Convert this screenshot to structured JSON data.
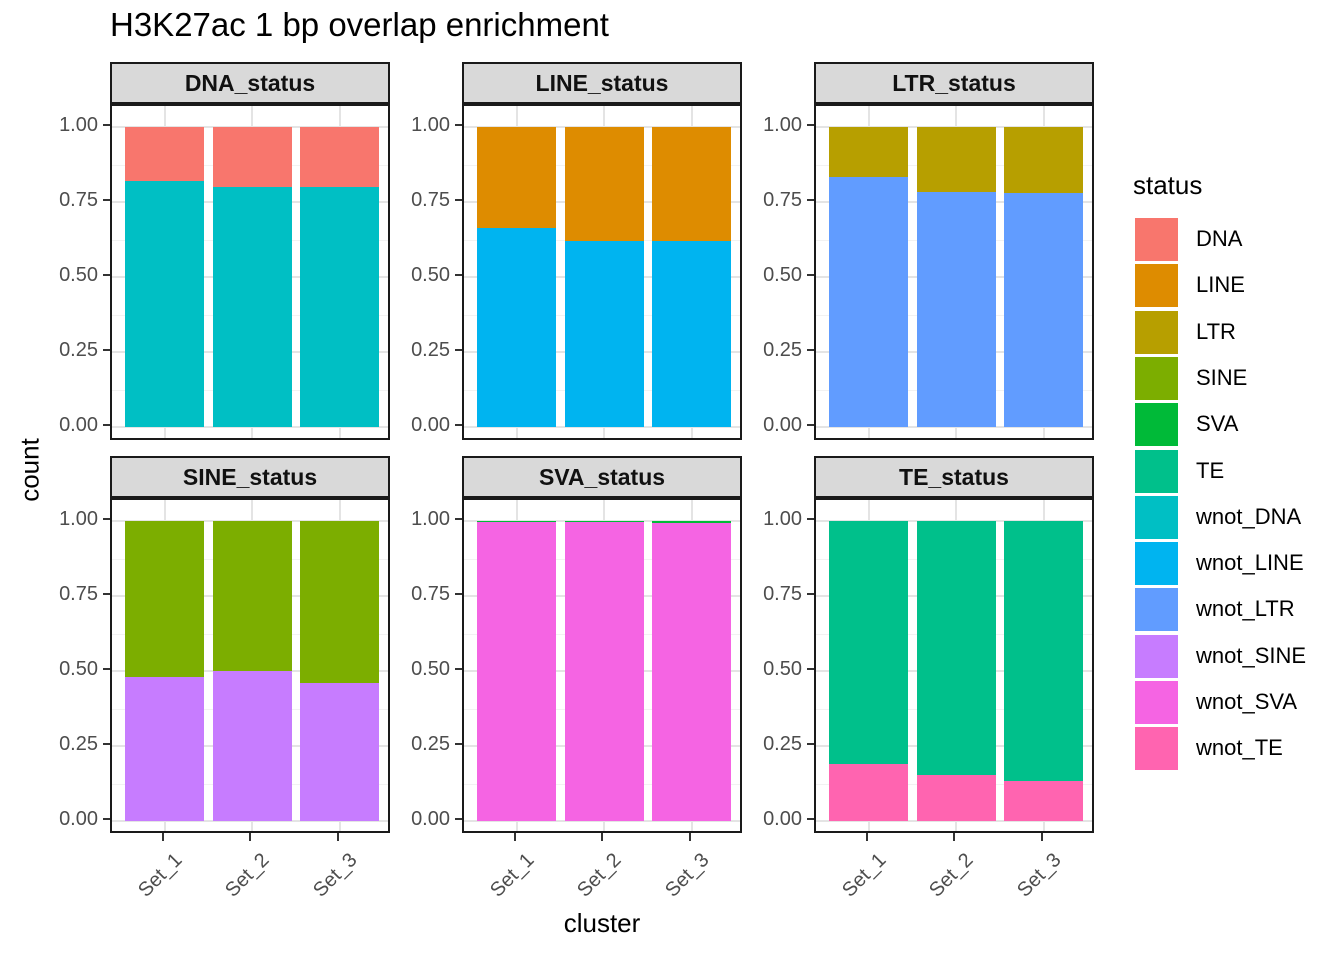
{
  "title": "H3K27ac 1 bp overlap enrichment",
  "x_axis_title": "cluster",
  "y_axis_title": "count",
  "y_tick_labels": [
    "1.00",
    "0.75",
    "0.50",
    "0.25",
    "0.00"
  ],
  "x_tick_labels": [
    "Set_1",
    "Set_2",
    "Set_3"
  ],
  "legend": {
    "title": "status",
    "items": [
      {
        "label": "DNA",
        "color": "#F8766D"
      },
      {
        "label": "LINE",
        "color": "#DE8C00"
      },
      {
        "label": "LTR",
        "color": "#B79F00"
      },
      {
        "label": "SINE",
        "color": "#7CAE00"
      },
      {
        "label": "SVA",
        "color": "#00BA38"
      },
      {
        "label": "TE",
        "color": "#00C08B"
      },
      {
        "label": "wnot_DNA",
        "color": "#00BFC4"
      },
      {
        "label": "wnot_LINE",
        "color": "#00B4F0"
      },
      {
        "label": "wnot_LTR",
        "color": "#619CFF"
      },
      {
        "label": "wnot_SINE",
        "color": "#C77CFF"
      },
      {
        "label": "wnot_SVA",
        "color": "#F564E3"
      },
      {
        "label": "wnot_TE",
        "color": "#FF64B0"
      }
    ]
  },
  "chart_data": {
    "type": "bar",
    "stacked": true,
    "normalized": true,
    "title": "H3K27ac 1 bp overlap enrichment",
    "xlabel": "cluster",
    "ylabel": "count",
    "ylim": [
      0,
      1
    ],
    "y_major_ticks": [
      1.0,
      0.75,
      0.5,
      0.25,
      0.0
    ],
    "y_minor_ticks": [
      0.875,
      0.625,
      0.375,
      0.125
    ],
    "grid": true,
    "legend_position": "right",
    "categories": [
      "Set_1",
      "Set_2",
      "Set_3"
    ],
    "facets": [
      {
        "label": "DNA_status",
        "segments": [
          {
            "name": "wnot_DNA",
            "color": "#00BFC4",
            "values": [
              0.82,
              0.8,
              0.8
            ]
          },
          {
            "name": "DNA",
            "color": "#F8766D",
            "values": [
              0.18,
              0.2,
              0.2
            ]
          }
        ]
      },
      {
        "label": "LINE_status",
        "segments": [
          {
            "name": "wnot_LINE",
            "color": "#00B4F0",
            "values": [
              0.665,
              0.62,
              0.62
            ]
          },
          {
            "name": "LINE",
            "color": "#DE8C00",
            "values": [
              0.335,
              0.38,
              0.38
            ]
          }
        ]
      },
      {
        "label": "LTR_status",
        "segments": [
          {
            "name": "wnot_LTR",
            "color": "#619CFF",
            "values": [
              0.835,
              0.785,
              0.78
            ]
          },
          {
            "name": "LTR",
            "color": "#B79F00",
            "values": [
              0.165,
              0.215,
              0.22
            ]
          }
        ]
      },
      {
        "label": "SINE_status",
        "segments": [
          {
            "name": "wnot_SINE",
            "color": "#C77CFF",
            "values": [
              0.48,
              0.5,
              0.46
            ]
          },
          {
            "name": "SINE",
            "color": "#7CAE00",
            "values": [
              0.52,
              0.5,
              0.54
            ]
          }
        ]
      },
      {
        "label": "SVA_status",
        "segments": [
          {
            "name": "wnot_SVA",
            "color": "#F564E3",
            "values": [
              0.997,
              0.997,
              0.993
            ]
          },
          {
            "name": "SVA",
            "color": "#00BA38",
            "values": [
              0.003,
              0.003,
              0.007
            ]
          }
        ]
      },
      {
        "label": "TE_status",
        "segments": [
          {
            "name": "wnot_TE",
            "color": "#FF64B0",
            "values": [
              0.19,
              0.155,
              0.135
            ]
          },
          {
            "name": "TE",
            "color": "#00C08B",
            "values": [
              0.81,
              0.845,
              0.865
            ]
          }
        ]
      }
    ]
  }
}
